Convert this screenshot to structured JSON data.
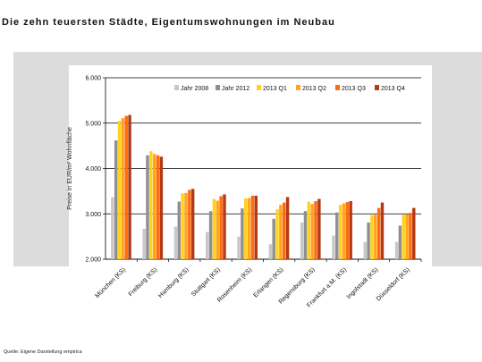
{
  "slide": {
    "title": "Die zehn teuersten Städte, Eigentumswohnungen im Neubau",
    "source": "Quelle: Eigene Darstellung empirica"
  },
  "colors": {
    "panel_bg": "#dcdcdc",
    "plot_bg": "#ffffff",
    "grid": "#000000",
    "series": [
      "#c8c8c8",
      "#8f8f8f",
      "#ffd21f",
      "#ffa51f",
      "#ff6a12",
      "#b33a14"
    ]
  },
  "chart_data": {
    "type": "bar",
    "title": "",
    "xlabel": "",
    "ylabel": "Preise in EUR/m² Wohnfläche",
    "ylim": [
      2000,
      6000
    ],
    "yticks": [
      "2.000",
      "3.000",
      "4.000",
      "5.000",
      "6.000"
    ],
    "grid": "horizontal",
    "legend_position": "top-right",
    "categories": [
      "München (KS)",
      "Freiburg (KS)",
      "Hamburg (KS)",
      "Stuttgart (KS)",
      "Rosenheim (KS)",
      "Erlangen (KS)",
      "Regensburg (KS)",
      "Frankfurt a.M. (KS)",
      "Ingolstadt (KS)",
      "Düsseldorf (KS)"
    ],
    "series": [
      {
        "name": "Jahr 2008",
        "values": [
          3370,
          2670,
          2720,
          2600,
          2500,
          2330,
          2810,
          2520,
          2380,
          2380
        ]
      },
      {
        "name": "Jahr 2012",
        "values": [
          4620,
          4290,
          3270,
          3060,
          3120,
          2890,
          3060,
          3030,
          2810,
          2740
        ]
      },
      {
        "name": "2013 Q1",
        "values": [
          5050,
          4380,
          3450,
          3330,
          3340,
          3100,
          3270,
          3200,
          2970,
          2980
        ]
      },
      {
        "name": "2013 Q2",
        "values": [
          5110,
          4320,
          3460,
          3290,
          3350,
          3200,
          3220,
          3230,
          2980,
          2990
        ]
      },
      {
        "name": "2013 Q3",
        "values": [
          5160,
          4290,
          3530,
          3390,
          3400,
          3250,
          3280,
          3260,
          3130,
          3020
        ]
      },
      {
        "name": "2013 Q4",
        "values": [
          5180,
          4260,
          3550,
          3430,
          3400,
          3370,
          3330,
          3280,
          3250,
          3130
        ]
      }
    ]
  }
}
